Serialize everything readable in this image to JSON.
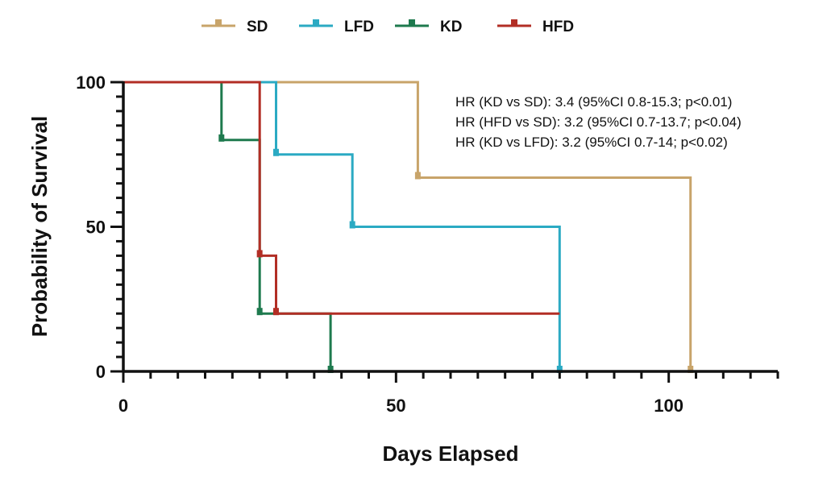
{
  "chart_data": {
    "type": "line",
    "subtype": "kaplan-meier step survival curve",
    "xlabel": "Days Elapsed",
    "ylabel": "Probability of Survival",
    "xlim": [
      0,
      120
    ],
    "ylim": [
      0,
      100
    ],
    "xticks": [
      0,
      50,
      100
    ],
    "yticks": [
      0,
      50,
      100
    ],
    "grid": false,
    "legend_position": "top-center",
    "series": [
      {
        "name": "SD",
        "color": "#C8A46A",
        "steps": [
          [
            0,
            100
          ],
          [
            54,
            100
          ],
          [
            54,
            67
          ],
          [
            104,
            67
          ],
          [
            104,
            0
          ]
        ],
        "markers": [
          [
            54,
            67
          ],
          [
            104,
            0
          ]
        ]
      },
      {
        "name": "LFD",
        "color": "#2BAAC3",
        "steps": [
          [
            0,
            100
          ],
          [
            28,
            100
          ],
          [
            28,
            75
          ],
          [
            42,
            75
          ],
          [
            42,
            50
          ],
          [
            80,
            50
          ],
          [
            80,
            0
          ]
        ],
        "markers": [
          [
            28,
            75
          ],
          [
            42,
            50
          ],
          [
            80,
            0
          ]
        ]
      },
      {
        "name": "KD",
        "color": "#1E7A4E",
        "steps": [
          [
            0,
            100
          ],
          [
            18,
            100
          ],
          [
            18,
            80
          ],
          [
            25,
            80
          ],
          [
            25,
            20
          ],
          [
            38,
            20
          ],
          [
            38,
            0
          ]
        ],
        "markers": [
          [
            18,
            80
          ],
          [
            25,
            20
          ],
          [
            38,
            0
          ]
        ]
      },
      {
        "name": "HFD",
        "color": "#B22E25",
        "steps": [
          [
            0,
            100
          ],
          [
            25,
            100
          ],
          [
            25,
            40
          ],
          [
            28,
            40
          ],
          [
            28,
            20
          ],
          [
            80,
            20
          ]
        ],
        "markers": [
          [
            25,
            40
          ],
          [
            28,
            20
          ]
        ]
      }
    ],
    "annotations": [
      "HR (KD vs SD): 3.4 (95%CI 0.8-15.3; p<0.01)",
      "HR (HFD vs SD): 3.2 (95%CI 0.7-13.7; p<0.04)",
      "HR (KD vs LFD): 3.2 (95%CI 0.7-14; p<0.02)"
    ]
  }
}
